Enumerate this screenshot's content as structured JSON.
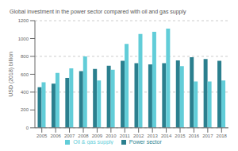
{
  "chart_data": {
    "type": "bar",
    "title": "Global investment in the power sector compared with oil and gas supply",
    "ylabel": "USD (2018) billion",
    "categories": [
      "2005",
      "2006",
      "2007",
      "2008",
      "2009",
      "2010",
      "2011",
      "2012",
      "2013",
      "2014",
      "2015",
      "2016",
      "2017",
      "2018"
    ],
    "series": [
      {
        "name": "Power sector",
        "color": "#2b7f8e",
        "values": [
          455,
          495,
          560,
          635,
          660,
          695,
          750,
          725,
          710,
          725,
          755,
          790,
          770,
          750
        ]
      },
      {
        "name": "Oil & gas supply",
        "color": "#62cdd8",
        "values": [
          510,
          615,
          665,
          800,
          530,
          650,
          940,
          1050,
          1075,
          1110,
          690,
          520,
          520,
          530
        ]
      }
    ],
    "ylim": [
      0,
      1200
    ],
    "yticks": [
      0,
      200,
      400,
      600,
      800,
      1000,
      1200
    ],
    "grid": true,
    "legend": "bottom"
  }
}
